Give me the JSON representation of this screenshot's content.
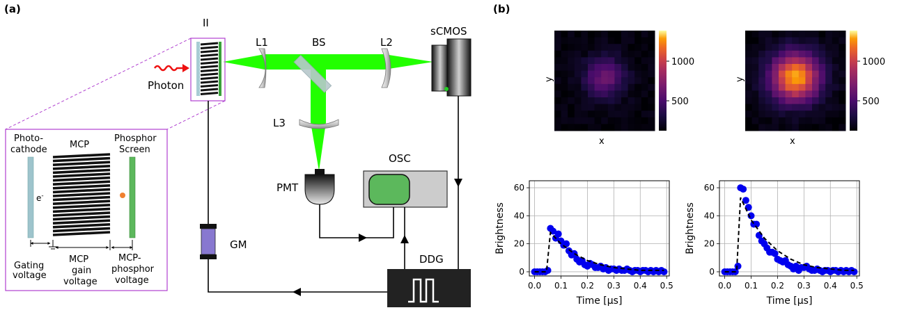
{
  "panel_a": {
    "label": "(a)",
    "labels": {
      "ii": "II",
      "photon": "Photon",
      "l1": "L1",
      "bs": "BS",
      "l2": "L2",
      "scmos": "sCMOS",
      "l3": "L3",
      "pmt": "PMT",
      "osc": "OSC",
      "gm": "GM",
      "ddg": "DDG"
    },
    "inset": {
      "photocathode_1": "Photo-",
      "photocathode_2": "cathode",
      "mcp": "MCP",
      "phosphor_1": "Phosphor",
      "phosphor_2": "Screen",
      "electron": "e",
      "electron_sup": "-",
      "gating_1": "Gating",
      "gating_2": "voltage",
      "mcpgain_1": "MCP",
      "mcpgain_2": "gain",
      "mcpgain_3": "voltage",
      "mcpphos_1": "MCP-",
      "mcpphos_2": "phosphor",
      "mcpphos_3": "voltage"
    },
    "colors": {
      "beam": "#22ff00",
      "inset_border": "#b040d0",
      "gm": "#8878d0",
      "osc_screen": "#5cb85c",
      "ddg": "#222222"
    }
  },
  "panel_b": {
    "label": "(b)",
    "heatmaps": [
      {
        "xlabel": "x",
        "ylabel": "y",
        "colorbar_ticks": [
          "1000",
          "500"
        ],
        "colorbar_values": [
          1000,
          500
        ],
        "range": [
          100,
          1400
        ]
      },
      {
        "xlabel": "x",
        "ylabel": "y",
        "colorbar_ticks": [
          "1000",
          "500"
        ],
        "colorbar_values": [
          1000,
          500
        ],
        "range": [
          100,
          1400
        ]
      }
    ]
  },
  "chart_data": [
    {
      "type": "scatter",
      "xlabel": "Time [μs]",
      "ylabel": "Brightness",
      "xlim": [
        -0.02,
        0.51
      ],
      "ylim": [
        -3,
        65
      ],
      "xticks": [
        "0.0",
        "0.1",
        "0.2",
        "0.3",
        "0.4",
        "0.5"
      ],
      "xtick_values": [
        0.0,
        0.1,
        0.2,
        0.3,
        0.4,
        0.5
      ],
      "yticks": [
        "0",
        "20",
        "40",
        "60"
      ],
      "ytick_values": [
        0,
        20,
        40,
        60
      ],
      "grid": true,
      "series": [
        {
          "marker": "circle",
          "color": "#0000ee",
          "x": [
            0.0,
            0.01,
            0.02,
            0.03,
            0.04,
            0.05,
            0.06,
            0.07,
            0.08,
            0.09,
            0.1,
            0.11,
            0.12,
            0.13,
            0.14,
            0.15,
            0.16,
            0.17,
            0.18,
            0.19,
            0.2,
            0.21,
            0.22,
            0.23,
            0.24,
            0.25,
            0.26,
            0.27,
            0.28,
            0.29,
            0.3,
            0.31,
            0.32,
            0.33,
            0.34,
            0.35,
            0.36,
            0.37,
            0.38,
            0.39,
            0.4,
            0.41,
            0.42,
            0.43,
            0.44,
            0.45,
            0.46,
            0.47,
            0.48,
            0.49
          ],
          "y": [
            0,
            0,
            0,
            0,
            0,
            1,
            31,
            29,
            24,
            27,
            22,
            19,
            20,
            15,
            12,
            13,
            9,
            7,
            8,
            5,
            4,
            6,
            5,
            3,
            3,
            4,
            2,
            3,
            1,
            2,
            2,
            1,
            2,
            1,
            1,
            2,
            1,
            0,
            1,
            1,
            0,
            1,
            1,
            0,
            1,
            0,
            1,
            0,
            1,
            0
          ]
        },
        {
          "style": "dashed",
          "color": "#000000",
          "x": [
            0.0,
            0.045,
            0.06,
            0.1,
            0.15,
            0.2,
            0.25,
            0.3,
            0.35,
            0.4,
            0.45,
            0.49
          ],
          "y": [
            0,
            0,
            28,
            20,
            13,
            8,
            5,
            3,
            2,
            1,
            1,
            1
          ]
        }
      ]
    },
    {
      "type": "scatter",
      "xlabel": "Time [μs]",
      "ylabel": "Brightness",
      "xlim": [
        -0.02,
        0.51
      ],
      "ylim": [
        -3,
        65
      ],
      "xticks": [
        "0.0",
        "0.1",
        "0.2",
        "0.3",
        "0.4",
        "0.5"
      ],
      "xtick_values": [
        0.0,
        0.1,
        0.2,
        0.3,
        0.4,
        0.5
      ],
      "yticks": [
        "0",
        "20",
        "40",
        "60"
      ],
      "ytick_values": [
        0,
        20,
        40,
        60
      ],
      "grid": true,
      "series": [
        {
          "marker": "circle",
          "color": "#0000ee",
          "x": [
            0.0,
            0.01,
            0.02,
            0.03,
            0.04,
            0.05,
            0.06,
            0.07,
            0.08,
            0.09,
            0.1,
            0.11,
            0.12,
            0.13,
            0.14,
            0.15,
            0.16,
            0.17,
            0.18,
            0.19,
            0.2,
            0.21,
            0.22,
            0.23,
            0.24,
            0.25,
            0.26,
            0.27,
            0.28,
            0.29,
            0.3,
            0.31,
            0.32,
            0.33,
            0.34,
            0.35,
            0.36,
            0.37,
            0.38,
            0.39,
            0.4,
            0.41,
            0.42,
            0.43,
            0.44,
            0.45,
            0.46,
            0.47,
            0.48,
            0.49
          ],
          "y": [
            0,
            0,
            0,
            0,
            0,
            4,
            60,
            59,
            51,
            46,
            40,
            34,
            34,
            26,
            22,
            20,
            17,
            14,
            14,
            13,
            9,
            8,
            7,
            8,
            5,
            4,
            2,
            4,
            1,
            3,
            3,
            4,
            2,
            1,
            1,
            2,
            1,
            0,
            1,
            1,
            0,
            1,
            1,
            0,
            1,
            0,
            1,
            0,
            1,
            0
          ]
        },
        {
          "style": "dashed",
          "color": "#000000",
          "x": [
            0.0,
            0.045,
            0.06,
            0.1,
            0.15,
            0.2,
            0.25,
            0.3,
            0.35,
            0.4,
            0.45,
            0.49
          ],
          "y": [
            0,
            0,
            53,
            37,
            24,
            15,
            9,
            5,
            3,
            2,
            1,
            1
          ]
        }
      ]
    }
  ]
}
